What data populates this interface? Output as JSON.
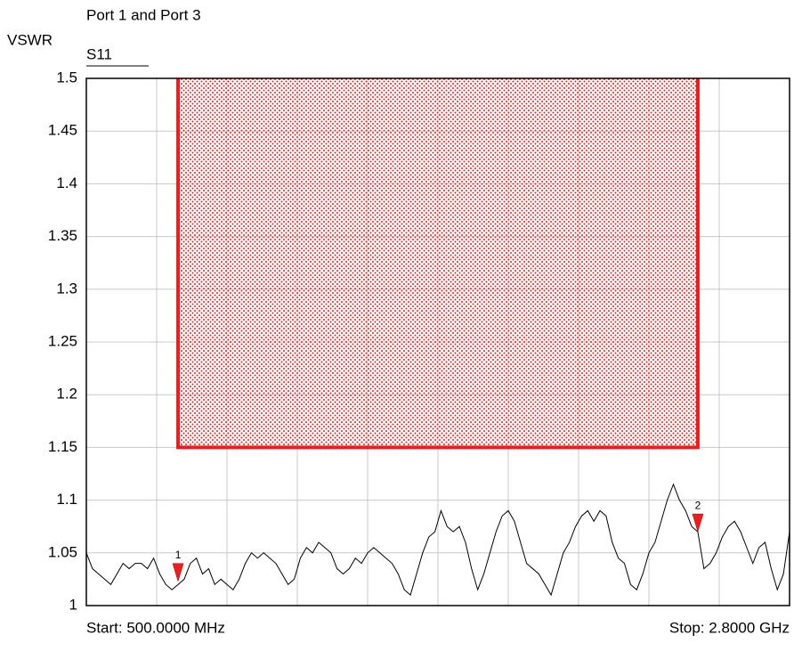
{
  "chart_data": {
    "type": "line",
    "title": "Port 1 and Port 3",
    "y_label": "VSWR",
    "start_label": "Start: 500.0000 MHz",
    "stop_label": "Stop: 2.8000 GHz",
    "xlim": [
      500,
      2800
    ],
    "ylim": [
      1,
      1.5
    ],
    "yticks": [
      1,
      1.05,
      1.1,
      1.15,
      1.2,
      1.25,
      1.3,
      1.35,
      1.4,
      1.45,
      1.5
    ],
    "grid": true,
    "x": [
      500,
      520,
      540,
      560,
      580,
      600,
      620,
      640,
      660,
      680,
      700,
      720,
      740,
      760,
      780,
      800,
      820,
      840,
      860,
      880,
      900,
      920,
      940,
      960,
      980,
      1000,
      1020,
      1040,
      1060,
      1080,
      1100,
      1120,
      1140,
      1160,
      1180,
      1200,
      1220,
      1240,
      1260,
      1280,
      1300,
      1320,
      1340,
      1360,
      1380,
      1400,
      1420,
      1440,
      1460,
      1480,
      1500,
      1520,
      1540,
      1560,
      1580,
      1600,
      1620,
      1640,
      1660,
      1680,
      1700,
      1720,
      1740,
      1760,
      1780,
      1800,
      1820,
      1840,
      1860,
      1880,
      1900,
      1920,
      1940,
      1960,
      1980,
      2000,
      2020,
      2040,
      2060,
      2080,
      2100,
      2120,
      2140,
      2160,
      2180,
      2200,
      2220,
      2240,
      2260,
      2280,
      2300,
      2320,
      2340,
      2360,
      2380,
      2400,
      2420,
      2440,
      2460,
      2480,
      2500,
      2520,
      2540,
      2560,
      2580,
      2600,
      2620,
      2640,
      2660,
      2680,
      2700,
      2720,
      2740,
      2760,
      2780,
      2800
    ],
    "series": [
      {
        "name": "S11",
        "color": "#000000",
        "values": [
          1.05,
          1.035,
          1.03,
          1.025,
          1.02,
          1.03,
          1.04,
          1.035,
          1.04,
          1.04,
          1.035,
          1.045,
          1.03,
          1.02,
          1.015,
          1.02,
          1.025,
          1.04,
          1.045,
          1.03,
          1.035,
          1.02,
          1.025,
          1.02,
          1.015,
          1.025,
          1.04,
          1.05,
          1.045,
          1.05,
          1.045,
          1.04,
          1.03,
          1.02,
          1.025,
          1.045,
          1.055,
          1.05,
          1.06,
          1.055,
          1.05,
          1.035,
          1.03,
          1.035,
          1.045,
          1.04,
          1.05,
          1.055,
          1.05,
          1.045,
          1.04,
          1.03,
          1.015,
          1.01,
          1.03,
          1.05,
          1.065,
          1.07,
          1.09,
          1.075,
          1.07,
          1.075,
          1.06,
          1.035,
          1.015,
          1.03,
          1.05,
          1.07,
          1.085,
          1.09,
          1.08,
          1.06,
          1.04,
          1.035,
          1.03,
          1.02,
          1.01,
          1.03,
          1.05,
          1.06,
          1.075,
          1.085,
          1.09,
          1.08,
          1.09,
          1.085,
          1.06,
          1.045,
          1.04,
          1.02,
          1.015,
          1.03,
          1.05,
          1.06,
          1.08,
          1.1,
          1.115,
          1.1,
          1.09,
          1.075,
          1.07,
          1.035,
          1.04,
          1.05,
          1.065,
          1.075,
          1.08,
          1.07,
          1.055,
          1.04,
          1.055,
          1.06,
          1.035,
          1.015,
          1.03,
          1.07
        ]
      }
    ],
    "limit": {
      "x": [
        800,
        2500
      ],
      "value": 1.15,
      "color": "#ee1c1c"
    },
    "markers": [
      {
        "label": "1",
        "x": 800,
        "value": 1.023
      },
      {
        "label": "2",
        "x": 2500,
        "value": 1.07
      }
    ],
    "marker_color": "#ee1c1c"
  }
}
